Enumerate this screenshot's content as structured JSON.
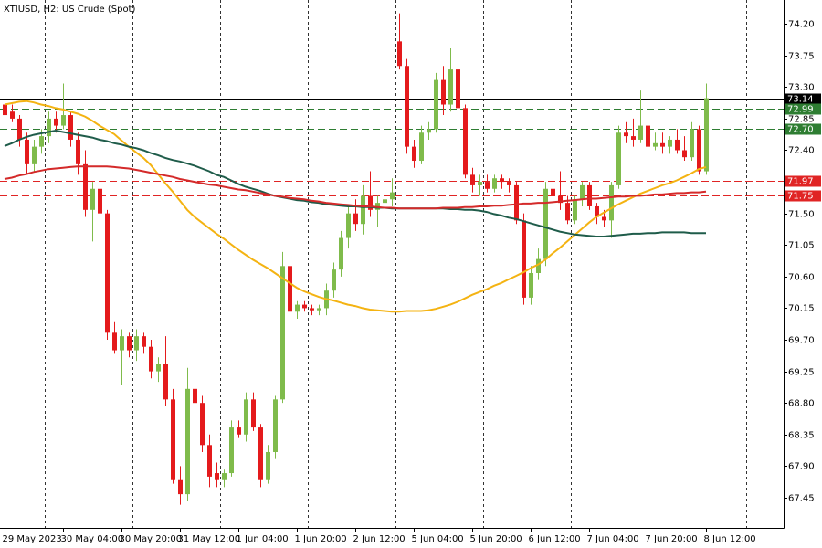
{
  "chart_data": {
    "type": "candlestick",
    "title": "XTIUSD, H2:  US Crude (Spot)",
    "categories": [
      "29 May 2023",
      null,
      null,
      null,
      null,
      null,
      null,
      null,
      "30 May 04:00",
      null,
      null,
      null,
      null,
      null,
      null,
      null,
      "30 May 20:00",
      null,
      null,
      null,
      null,
      null,
      null,
      null,
      "31 May 12:00",
      null,
      null,
      null,
      null,
      null,
      null,
      null,
      "1 Jun 04:00",
      null,
      null,
      null,
      null,
      null,
      null,
      null,
      "1 Jun 20:00",
      null,
      null,
      null,
      null,
      null,
      null,
      null,
      "2 Jun 12:00",
      null,
      null,
      null,
      null,
      null,
      null,
      null,
      "5 Jun 04:00",
      null,
      null,
      null,
      null,
      null,
      null,
      null,
      "5 Jun 20:00",
      null,
      null,
      null,
      null,
      null,
      null,
      null,
      "6 Jun 12:00",
      null,
      null,
      null,
      null,
      null,
      null,
      null,
      "7 Jun 04:00",
      null,
      null,
      null,
      null,
      null,
      null,
      null,
      "7 Jun 20:00",
      null,
      null,
      null,
      null,
      null,
      null,
      null,
      "8 Jun 12:00"
    ],
    "open": [
      73.05,
      72.95,
      72.85,
      72.55,
      72.2,
      72.45,
      72.6,
      72.85,
      72.75,
      72.9,
      72.55,
      72.2,
      71.55,
      71.85,
      71.5,
      69.8,
      69.55,
      69.75,
      69.55,
      69.75,
      69.6,
      69.25,
      69.35,
      68.85,
      67.7,
      67.5,
      69.0,
      68.8,
      68.2,
      67.8,
      67.7,
      67.8,
      68.45,
      68.35,
      68.85,
      68.45,
      67.7,
      68.1,
      68.85,
      70.75,
      70.1,
      70.2,
      70.15,
      70.12,
      70.15,
      70.4,
      70.7,
      71.15,
      71.5,
      71.35,
      71.75,
      71.55,
      71.65,
      71.7,
      73.95,
      73.6,
      72.45,
      72.25,
      72.65,
      72.7,
      73.4,
      73.05,
      73.55,
      73.0,
      72.05,
      71.9,
      71.95,
      71.85,
      72.0,
      71.95,
      71.9,
      71.4,
      70.3,
      70.65,
      70.85,
      71.85,
      71.75,
      71.65,
      71.4,
      71.7,
      71.9,
      71.6,
      71.45,
      71.4,
      71.9,
      72.65,
      72.6,
      72.55,
      72.75,
      72.45,
      72.5,
      72.45,
      72.55,
      72.4,
      72.3,
      72.7,
      72.1
    ],
    "high": [
      73.3,
      73.05,
      72.9,
      72.65,
      72.55,
      72.7,
      72.95,
      72.95,
      73.35,
      72.95,
      72.65,
      72.4,
      71.95,
      71.9,
      71.55,
      69.95,
      69.85,
      69.8,
      69.85,
      69.8,
      69.7,
      69.45,
      69.75,
      69.0,
      67.9,
      69.3,
      69.2,
      68.9,
      68.35,
      67.95,
      67.85,
      68.55,
      68.55,
      68.95,
      68.95,
      68.5,
      68.2,
      68.9,
      70.95,
      70.85,
      70.25,
      70.25,
      70.2,
      70.2,
      70.5,
      70.8,
      71.25,
      71.6,
      71.7,
      71.9,
      72.1,
      71.75,
      71.85,
      72.0,
      74.35,
      73.7,
      72.55,
      72.75,
      72.8,
      73.5,
      73.6,
      73.85,
      73.8,
      73.05,
      72.15,
      72.05,
      72.05,
      72.05,
      72.05,
      72.0,
      71.95,
      71.5,
      70.75,
      71.0,
      71.95,
      72.3,
      72.1,
      71.75,
      71.75,
      71.95,
      71.95,
      71.65,
      71.55,
      71.95,
      72.75,
      72.8,
      72.85,
      73.25,
      73.0,
      72.65,
      72.65,
      72.6,
      72.7,
      72.6,
      72.8,
      72.75,
      73.35
    ],
    "low": [
      72.85,
      72.8,
      72.45,
      72.05,
      72.1,
      72.35,
      72.5,
      72.65,
      72.7,
      72.45,
      72.05,
      71.45,
      71.1,
      71.4,
      69.7,
      69.5,
      69.05,
      69.45,
      69.4,
      69.5,
      69.15,
      69.1,
      68.75,
      67.65,
      67.35,
      67.4,
      68.7,
      68.1,
      67.6,
      67.6,
      67.6,
      67.75,
      68.3,
      68.25,
      68.4,
      67.6,
      67.65,
      68.0,
      68.8,
      70.05,
      70.0,
      70.1,
      70.05,
      70.05,
      70.05,
      70.3,
      70.6,
      71.0,
      71.25,
      71.2,
      71.45,
      71.3,
      71.55,
      71.6,
      73.55,
      72.35,
      72.15,
      72.2,
      72.55,
      72.65,
      72.9,
      72.95,
      72.8,
      72.0,
      71.8,
      71.75,
      71.8,
      71.8,
      71.85,
      71.8,
      71.35,
      70.2,
      70.2,
      70.55,
      70.75,
      71.6,
      71.55,
      71.35,
      71.35,
      71.6,
      71.55,
      71.35,
      71.3,
      71.15,
      71.85,
      72.5,
      72.45,
      72.5,
      72.4,
      72.4,
      72.35,
      72.35,
      72.35,
      72.25,
      72.25,
      72.05,
      72.05
    ],
    "close": [
      72.9,
      72.85,
      72.55,
      72.2,
      72.45,
      72.6,
      72.85,
      72.75,
      72.9,
      72.55,
      72.2,
      71.55,
      71.85,
      71.5,
      69.8,
      69.55,
      69.75,
      69.55,
      69.75,
      69.6,
      69.25,
      69.35,
      68.85,
      67.7,
      67.5,
      69.0,
      68.8,
      68.2,
      67.75,
      67.7,
      67.8,
      68.45,
      68.35,
      68.85,
      68.45,
      67.7,
      68.1,
      68.85,
      70.75,
      70.1,
      70.2,
      70.15,
      70.12,
      70.15,
      70.4,
      70.7,
      71.15,
      71.5,
      71.35,
      71.75,
      71.55,
      71.65,
      71.7,
      71.8,
      73.6,
      72.45,
      72.25,
      72.65,
      72.7,
      73.4,
      73.05,
      73.55,
      73.0,
      72.05,
      71.9,
      71.95,
      71.85,
      72.0,
      71.95,
      71.9,
      71.4,
      70.3,
      70.65,
      70.85,
      71.85,
      71.75,
      71.65,
      71.4,
      71.7,
      71.9,
      71.6,
      71.45,
      71.4,
      71.9,
      72.65,
      72.6,
      72.55,
      72.75,
      72.45,
      72.5,
      72.45,
      72.55,
      72.4,
      72.3,
      72.7,
      72.1,
      73.14
    ],
    "up_color": "#7fbb4b",
    "down_color": "#e41a1c",
    "overlays": [
      {
        "color": "#f4b312",
        "values": [
          73.05,
          73.07,
          73.09,
          73.1,
          73.08,
          73.05,
          73.03,
          73.0,
          72.98,
          72.95,
          72.92,
          72.88,
          72.82,
          72.75,
          72.69,
          72.63,
          72.54,
          72.45,
          72.37,
          72.29,
          72.19,
          72.06,
          71.93,
          71.81,
          71.68,
          71.55,
          71.45,
          71.37,
          71.29,
          71.21,
          71.14,
          71.06,
          70.98,
          70.91,
          70.84,
          70.78,
          70.72,
          70.65,
          70.58,
          70.51,
          70.44,
          70.39,
          70.35,
          70.31,
          70.28,
          70.26,
          70.23,
          70.2,
          70.18,
          70.15,
          70.13,
          70.12,
          70.11,
          70.1,
          70.1,
          70.11,
          70.11,
          70.11,
          70.12,
          70.14,
          70.17,
          70.2,
          70.24,
          70.29,
          70.34,
          70.38,
          70.42,
          70.47,
          70.51,
          70.56,
          70.61,
          70.66,
          70.72,
          70.77,
          70.84,
          70.93,
          71.01,
          71.1,
          71.19,
          71.28,
          71.37,
          71.45,
          71.51,
          71.57,
          71.63,
          71.68,
          71.73,
          71.78,
          71.82,
          71.86,
          71.9,
          71.93,
          71.97,
          72.02,
          72.07,
          72.13,
          72.16
        ]
      },
      {
        "color": "#1f5c4a",
        "values": [
          72.46,
          72.5,
          72.55,
          72.59,
          72.62,
          72.64,
          72.66,
          72.68,
          72.66,
          72.64,
          72.62,
          72.6,
          72.58,
          72.55,
          72.53,
          72.5,
          72.48,
          72.45,
          72.43,
          72.4,
          72.36,
          72.33,
          72.29,
          72.26,
          72.24,
          72.21,
          72.18,
          72.14,
          72.1,
          72.05,
          72.02,
          71.97,
          71.92,
          71.88,
          71.85,
          71.82,
          71.78,
          71.75,
          71.73,
          71.71,
          71.69,
          71.68,
          71.66,
          71.65,
          71.63,
          71.62,
          71.61,
          71.6,
          71.6,
          71.59,
          71.59,
          71.58,
          71.58,
          71.57,
          71.57,
          71.57,
          71.57,
          71.57,
          71.57,
          71.57,
          71.57,
          71.56,
          71.56,
          71.55,
          71.55,
          71.54,
          71.52,
          71.49,
          71.47,
          71.44,
          71.42,
          71.39,
          71.36,
          71.33,
          71.3,
          71.27,
          71.24,
          71.22,
          71.2,
          71.19,
          71.18,
          71.17,
          71.17,
          71.18,
          71.19,
          71.2,
          71.21,
          71.21,
          71.22,
          71.22,
          71.23,
          71.23,
          71.23,
          71.23,
          71.22,
          71.22,
          71.22
        ]
      },
      {
        "color": "#d42a2a",
        "values": [
          71.99,
          72.01,
          72.04,
          72.06,
          72.09,
          72.11,
          72.13,
          72.14,
          72.15,
          72.16,
          72.17,
          72.17,
          72.17,
          72.17,
          72.17,
          72.16,
          72.15,
          72.14,
          72.12,
          72.1,
          72.08,
          72.06,
          72.04,
          72.02,
          71.99,
          71.97,
          71.95,
          71.93,
          71.91,
          71.9,
          71.88,
          71.86,
          71.84,
          71.83,
          71.81,
          71.79,
          71.77,
          71.75,
          71.74,
          71.72,
          71.71,
          71.7,
          71.68,
          71.67,
          71.65,
          71.64,
          71.63,
          71.62,
          71.61,
          71.6,
          71.6,
          71.59,
          71.58,
          71.58,
          71.57,
          71.57,
          71.57,
          71.57,
          71.57,
          71.57,
          71.58,
          71.58,
          71.58,
          71.59,
          71.59,
          71.6,
          71.6,
          71.61,
          71.61,
          71.62,
          71.63,
          71.64,
          71.64,
          71.65,
          71.65,
          71.66,
          71.67,
          71.68,
          71.69,
          71.7,
          71.71,
          71.71,
          71.72,
          71.73,
          71.74,
          71.74,
          71.75,
          71.75,
          71.76,
          71.77,
          71.77,
          71.78,
          71.79,
          71.79,
          71.8,
          71.8,
          71.81
        ]
      }
    ],
    "levels": [
      {
        "value": 73.14,
        "color": "#000000",
        "style": "solid"
      },
      {
        "value": 72.99,
        "color": "#2e7d32",
        "style": "dashed"
      },
      {
        "value": 72.7,
        "label": "72.70",
        "color": "#2e7d32",
        "style": "dashed"
      },
      {
        "value": 71.97,
        "color": "#e02424",
        "style": "dashed"
      },
      {
        "value": 71.75,
        "color": "#e02424",
        "style": "dashed"
      }
    ],
    "ylim": [
      67.02,
      74.54
    ],
    "yticks": [
      {
        "value": 74.2,
        "label": "74.20"
      },
      73.75,
      {
        "value": 73.3,
        "label": "73.30"
      },
      72.85,
      {
        "value": 72.4,
        "label": "72.40"
      },
      71.95,
      {
        "value": 71.5,
        "label": "71.50"
      },
      71.05,
      {
        "value": 70.6,
        "label": "70.60"
      },
      70.15,
      {
        "value": 69.7,
        "label": "69.70"
      },
      69.25,
      {
        "value": 68.8,
        "label": "68.80"
      },
      68.35,
      {
        "value": 67.9,
        "label": "67.90"
      },
      67.45
    ],
    "grid": true
  }
}
